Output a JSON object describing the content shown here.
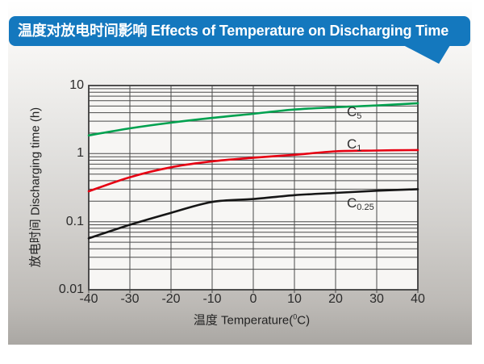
{
  "banner": {
    "title": "温度对放电时间影响 Effects of Temperature on Discharging Time",
    "bg_color": "#1478be",
    "text_color": "#ffffff"
  },
  "chart_data": {
    "type": "line",
    "title": "温度对放电时间影响 Effects of Temperature on Discharging Time",
    "xlabel": "温度 Temperature(°C)",
    "xlabel_parts": {
      "pre": "温度  Temperature(",
      "sup": "0",
      "post": "C)"
    },
    "ylabel": "放电时间 Discharging time (h)",
    "x_scale": "linear",
    "y_scale": "log",
    "xlim": [
      -40,
      40
    ],
    "ylim": [
      0.01,
      10
    ],
    "grid": true,
    "legend_position": "inline-labels",
    "x": [
      -40,
      -30,
      -20,
      -10,
      0,
      10,
      20,
      30,
      40
    ],
    "x_tick_labels": [
      "-40",
      "-30",
      "-20",
      "-10",
      "0",
      "10",
      "20",
      "30",
      "40"
    ],
    "y_ticks": [
      10,
      1,
      0.1,
      0.01
    ],
    "y_tick_labels": [
      "10",
      "1",
      "0.1",
      "0.01"
    ],
    "series": [
      {
        "name": "C5",
        "label_main": "C",
        "label_sub": "5",
        "color": "#00a14f",
        "values": [
          1.85,
          2.35,
          2.85,
          3.35,
          3.85,
          4.45,
          4.8,
          5.1,
          5.5
        ]
      },
      {
        "name": "C1",
        "label_main": "C",
        "label_sub": "1",
        "color": "#e60012",
        "values": [
          0.28,
          0.45,
          0.63,
          0.77,
          0.87,
          0.96,
          1.08,
          1.11,
          1.13
        ]
      },
      {
        "name": "C0.25",
        "label_main": "C",
        "label_sub": "0.25",
        "color": "#161616",
        "values": [
          0.057,
          0.09,
          0.135,
          0.195,
          0.215,
          0.245,
          0.265,
          0.285,
          0.3
        ]
      }
    ]
  },
  "colors": {
    "grid": "#4a4a4a",
    "plot_bg": "#f7f6f4",
    "axis_border": "#3d3d3d"
  }
}
